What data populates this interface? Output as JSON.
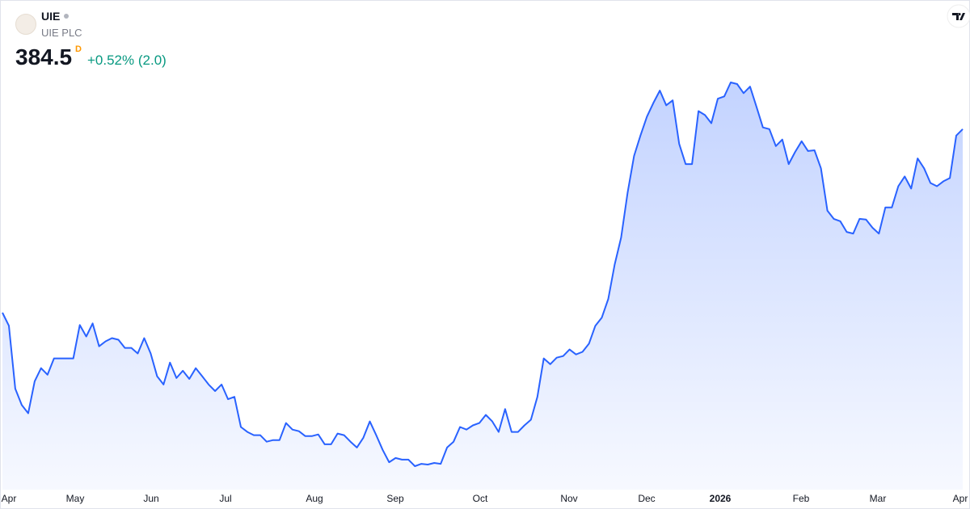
{
  "chart_data": {
    "type": "area",
    "symbol": "UIE",
    "title": "UIE PLC",
    "last_price": 384.5,
    "interval": "D",
    "change_label": "+0.52% (2.0)",
    "color": "#2962ff",
    "xticks": [
      "Apr",
      "May",
      "Jun",
      "Jul",
      "Aug",
      "Sep",
      "Oct",
      "Nov",
      "Dec",
      "2026",
      "Feb",
      "Mar",
      "Apr"
    ],
    "values": [
      305.8,
      300.2,
      273.2,
      266.2,
      262.7,
      276.4,
      282.0,
      279.2,
      286.2,
      286.2,
      286.2,
      286.2,
      300.5,
      295.6,
      301.2,
      291.4,
      293.5,
      294.9,
      294.2,
      290.7,
      290.7,
      288.3,
      294.9,
      288.3,
      278.5,
      275.0,
      284.4,
      277.8,
      280.9,
      277.4,
      282.0,
      278.5,
      275.0,
      272.2,
      275.0,
      268.7,
      269.7,
      256.8,
      254.7,
      253.3,
      253.3,
      250.5,
      251.2,
      251.2,
      258.5,
      255.7,
      255.0,
      252.9,
      252.9,
      253.6,
      249.4,
      249.4,
      254.0,
      253.3,
      250.5,
      248.0,
      252.2,
      259.2,
      253.3,
      247.0,
      241.7,
      243.5,
      242.8,
      242.8,
      240.0,
      241.0,
      240.7,
      241.4,
      241.0,
      248.0,
      250.5,
      256.8,
      255.7,
      257.5,
      258.5,
      262.0,
      259.2,
      254.7,
      264.5,
      254.7,
      254.7,
      257.5,
      259.9,
      269.7,
      286.2,
      283.7,
      286.5,
      287.2,
      290.0,
      287.9,
      289.0,
      292.5,
      300.2,
      303.7,
      311.7,
      326.4,
      338.0,
      357.2,
      373.0,
      381.7,
      389.8,
      395.7,
      401.0,
      394.7,
      396.8,
      378.2,
      369.5,
      369.5,
      392.2,
      390.5,
      387.0,
      397.5,
      398.5,
      404.5,
      403.8,
      399.9,
      402.7,
      394.0,
      385.2,
      384.5,
      377.2,
      380.0,
      369.5,
      374.7,
      379.3,
      375.1,
      375.4,
      367.7,
      349.5,
      346.0,
      345.0,
      340.4,
      339.7,
      346.0,
      345.7,
      342.2,
      339.7,
      350.9,
      350.9,
      360.0,
      364.2,
      359.0,
      371.9,
      367.7,
      361.4,
      360.0,
      362.1,
      363.5,
      381.7,
      384.5
    ]
  }
}
